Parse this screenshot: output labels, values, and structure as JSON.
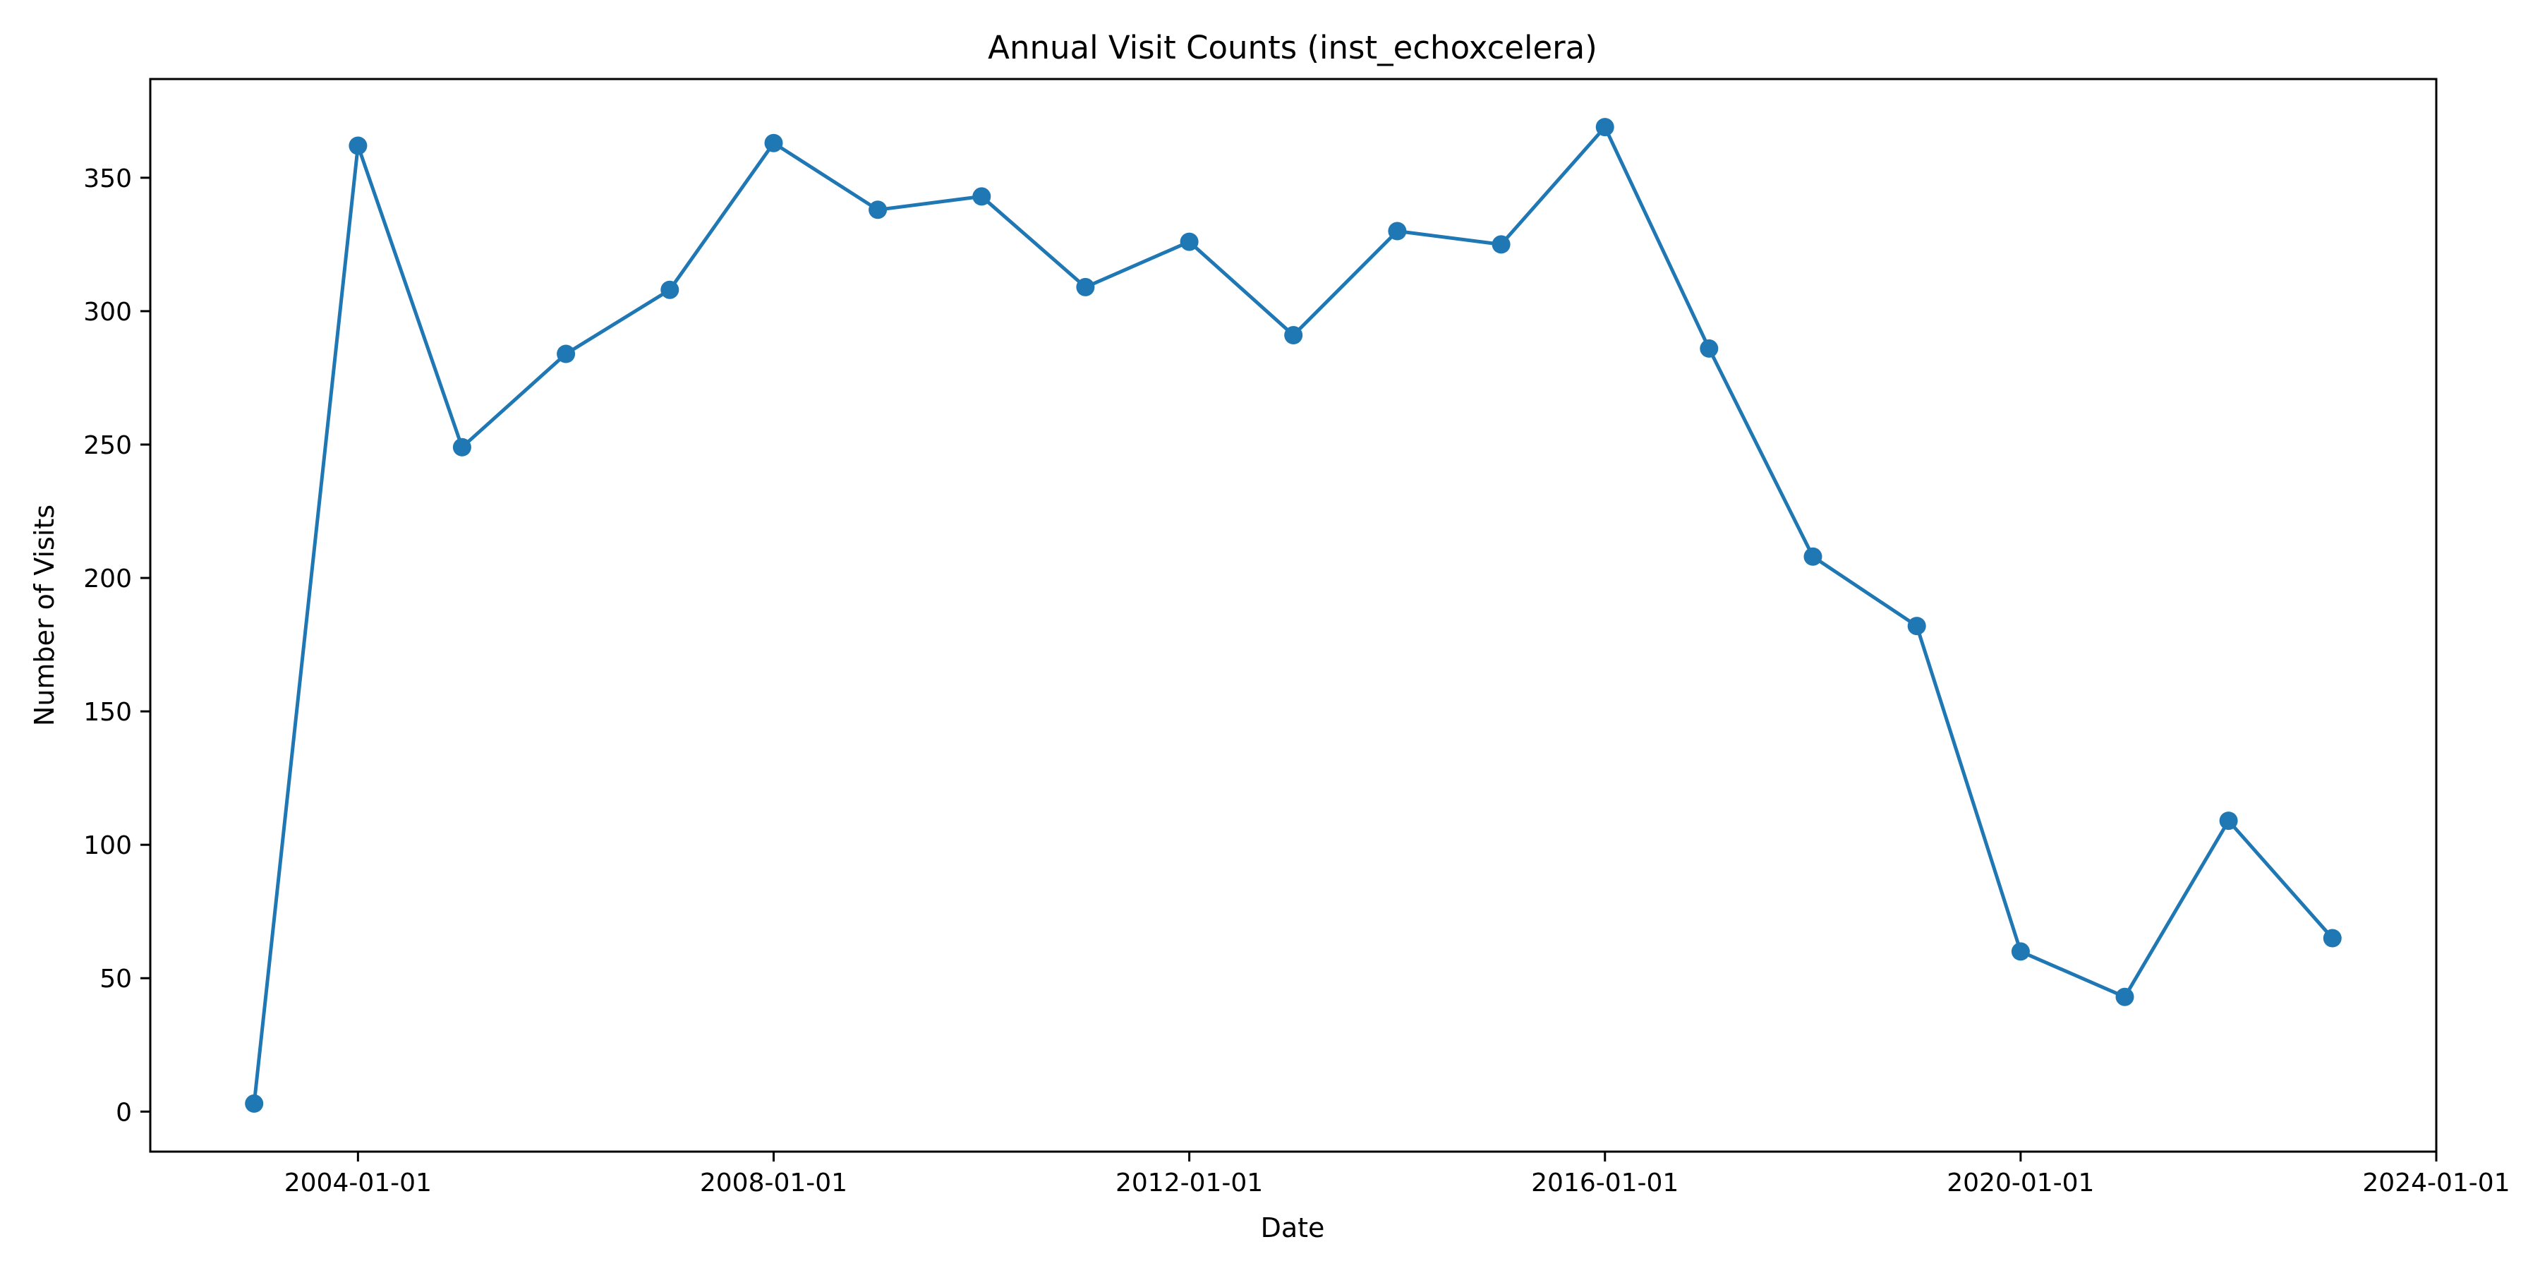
{
  "chart_data": {
    "type": "line",
    "title": "Annual Visit Counts (inst_echoxcelera)",
    "xlabel": "Date",
    "ylabel": "Number of Visits",
    "x_ticks": [
      "2004-01-01",
      "2008-01-01",
      "2012-01-01",
      "2016-01-01",
      "2020-01-01",
      "2024-01-01"
    ],
    "y_ticks": [
      0,
      50,
      100,
      150,
      200,
      250,
      300,
      350
    ],
    "xlim": [
      "2002-01-01",
      "2024-01-01"
    ],
    "ylim": [
      -15,
      387
    ],
    "grid": false,
    "color": "#1f77b4",
    "marker": "circle",
    "series": [
      {
        "x": [
          "2003-01-01",
          "2004-01-01",
          "2005-01-01",
          "2006-01-01",
          "2007-01-01",
          "2008-01-01",
          "2009-01-01",
          "2010-01-01",
          "2011-01-01",
          "2012-01-01",
          "2013-01-01",
          "2014-01-01",
          "2015-01-01",
          "2016-01-01",
          "2017-01-01",
          "2018-01-01",
          "2019-01-01",
          "2020-01-01",
          "2021-01-01",
          "2022-01-01",
          "2023-01-01"
        ],
        "values": [
          3,
          362,
          249,
          284,
          308,
          363,
          338,
          343,
          309,
          326,
          291,
          330,
          325,
          369,
          286,
          208,
          182,
          60,
          43,
          109,
          65
        ]
      }
    ]
  }
}
